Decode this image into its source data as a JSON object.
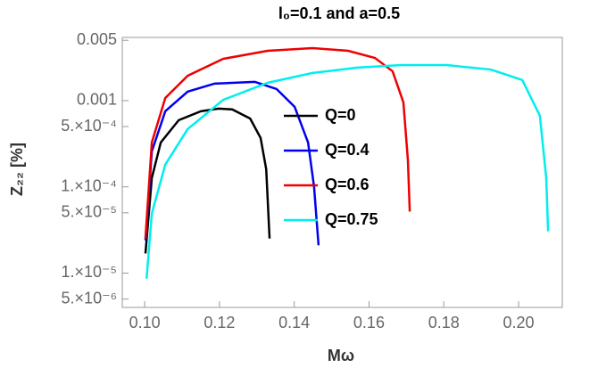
{
  "chart_data": {
    "type": "line",
    "title": "l₀=0.1 and a=0.5",
    "x_label": "Mω",
    "y_label": "Z₂₂ [%]",
    "log_y": true,
    "grid": false,
    "legend": "center",
    "xlim": [
      0.094,
      0.2117
    ],
    "ylim": [
      4e-06,
      0.0054
    ],
    "xticks": [
      {
        "value": 0.1,
        "label": "0.10"
      },
      {
        "value": 0.12,
        "label": "0.12"
      },
      {
        "value": 0.14,
        "label": "0.14"
      },
      {
        "value": 0.16,
        "label": "0.16"
      },
      {
        "value": 0.18,
        "label": "0.18"
      },
      {
        "value": 0.2,
        "label": "0.20"
      }
    ],
    "yticks": [
      0.005,
      0.001,
      {
        "value": 0.0005,
        "label": "5.×10⁻⁴"
      },
      {
        "value": 0.0001,
        "label": "1.×10⁻⁴"
      },
      {
        "value": 5e-05,
        "label": "5.×10⁻⁵"
      },
      {
        "value": 1e-05,
        "label": "1.×10⁻⁵"
      },
      {
        "value": 5e-06,
        "label": "5.×10⁻⁶"
      }
    ],
    "series": [
      {
        "name": "Q=0",
        "color": "#000000",
        "x": [
          0.1002,
          0.1019,
          0.1043,
          0.1091,
          0.115,
          0.1198,
          0.1234,
          0.1282,
          0.131,
          0.1325,
          0.1334
        ],
        "values": [
          1.69e-05,
          0.000127,
          0.000327,
          0.000593,
          0.000752,
          0.000807,
          0.00079,
          0.00062,
          0.000369,
          0.00016,
          2.52e-05
        ]
      },
      {
        "name": "Q=0.4",
        "color": "#0000ee",
        "x": [
          0.1002,
          0.1019,
          0.1055,
          0.1115,
          0.1186,
          0.1294,
          0.1353,
          0.1401,
          0.1437,
          0.1453,
          0.1465
        ],
        "values": [
          2.4e-05,
          0.000258,
          0.000752,
          0.00127,
          0.00157,
          0.00165,
          0.00136,
          0.000847,
          0.000327,
          0.0001,
          2.1e-05
        ]
      },
      {
        "name": "Q=0.6",
        "color": "#ee0000",
        "x": [
          0.1002,
          0.1019,
          0.1055,
          0.1115,
          0.121,
          0.1329,
          0.1449,
          0.1544,
          0.1616,
          0.1663,
          0.1692,
          0.1704,
          0.1709
        ],
        "values": [
          2.52e-05,
          0.000327,
          0.00107,
          0.00194,
          0.00305,
          0.00378,
          0.00406,
          0.00378,
          0.00312,
          0.00219,
          0.000953,
          0.000204,
          5.17e-05
        ]
      },
      {
        "name": "Q=0.75",
        "color": "#00eeee",
        "x": [
          0.1005,
          0.1019,
          0.1055,
          0.1115,
          0.121,
          0.1329,
          0.1449,
          0.1568,
          0.1687,
          0.1807,
          0.1926,
          0.201,
          0.2057,
          0.2074,
          0.2079
        ],
        "values": [
          8.6e-06,
          4.9e-05,
          0.000181,
          0.000468,
          0.00102,
          0.00161,
          0.00209,
          0.00241,
          0.00258,
          0.00258,
          0.00229,
          0.00173,
          0.000668,
          0.000127,
          3.05e-05
        ]
      }
    ]
  }
}
